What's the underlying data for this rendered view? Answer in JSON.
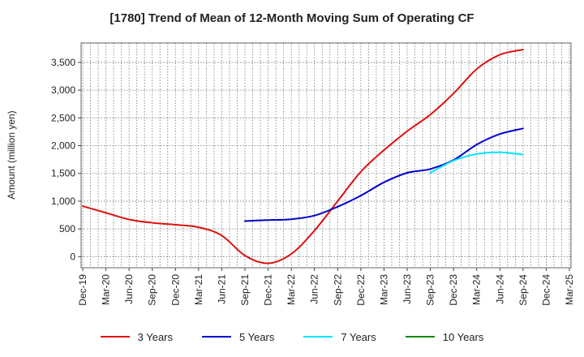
{
  "chart_data": {
    "type": "line",
    "title": "[1780]  Trend of Mean of 12-Month Moving Sum of Operating CF",
    "ylabel": "Amount (million yen)",
    "xlabel": "",
    "ylim": [
      -200,
      3850
    ],
    "yticks": [
      0,
      500,
      1000,
      1500,
      2000,
      2500,
      3000,
      3500
    ],
    "ytick_labels": [
      "0",
      "500",
      "1,000",
      "1,500",
      "2,000",
      "2,500",
      "3,000",
      "3,500"
    ],
    "categories": [
      "Dec-19",
      "Mar-20",
      "Jun-20",
      "Sep-20",
      "Dec-20",
      "Mar-21",
      "Jun-21",
      "Sep-21",
      "Dec-21",
      "Mar-22",
      "Jun-22",
      "Sep-22",
      "Dec-22",
      "Mar-23",
      "Jun-23",
      "Sep-23",
      "Dec-23",
      "Mar-24",
      "Jun-24",
      "Sep-24",
      "Dec-24",
      "Mar-25"
    ],
    "grid": true,
    "legend_position": "bottom",
    "series": [
      {
        "name": "3 Years",
        "color": "#dd1111",
        "values": [
          910,
          790,
          670,
          610,
          575,
          530,
          380,
          20,
          -120,
          50,
          470,
          1000,
          1530,
          1920,
          2260,
          2560,
          2940,
          3380,
          3640,
          3730,
          null,
          null
        ]
      },
      {
        "name": "5 Years",
        "color": "#0000cc",
        "values": [
          null,
          null,
          null,
          null,
          null,
          null,
          null,
          640,
          660,
          675,
          740,
          900,
          1100,
          1340,
          1510,
          1580,
          1740,
          2020,
          2210,
          2310,
          null,
          null
        ]
      },
      {
        "name": "7 Years",
        "color": "#00e5ff",
        "values": [
          null,
          null,
          null,
          null,
          null,
          null,
          null,
          null,
          null,
          null,
          null,
          null,
          null,
          null,
          null,
          1510,
          1730,
          1850,
          1880,
          1840,
          null,
          null
        ]
      },
      {
        "name": "10 Years",
        "color": "#118811",
        "values": [
          null,
          null,
          null,
          null,
          null,
          null,
          null,
          null,
          null,
          null,
          null,
          null,
          null,
          null,
          null,
          null,
          null,
          null,
          null,
          null,
          null,
          null
        ]
      }
    ]
  }
}
